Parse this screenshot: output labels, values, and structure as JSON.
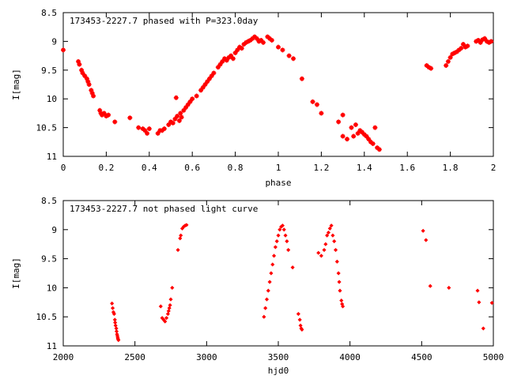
{
  "colors": {
    "marker": "#ff0000",
    "axis": "#000000",
    "background": "#ffffff"
  },
  "chart_data": [
    {
      "type": "scatter",
      "title": "173453-2227.7 phased with P=323.0day",
      "xlabel": "phase",
      "ylabel": "I[mag]",
      "xlim": [
        0,
        2
      ],
      "ylim": [
        8.5,
        11
      ],
      "y_inverted": true,
      "xticks": [
        0,
        0.2,
        0.4,
        0.6,
        0.8,
        1,
        1.2,
        1.4,
        1.6,
        1.8,
        2
      ],
      "xtick_labels": [
        "0",
        "0.2",
        "0.4",
        "0.6",
        "0.8",
        "1",
        "1.2",
        "1.4",
        "1.6",
        "1.8",
        "2"
      ],
      "yticks": [
        8.5,
        9,
        9.5,
        10,
        10.5,
        11
      ],
      "ytick_labels": [
        "8.5",
        "9",
        "9.5",
        "10",
        "10.5",
        "11"
      ],
      "grid": false,
      "marker": "star",
      "points": [
        [
          0.0,
          9.15
        ],
        [
          0.07,
          9.35
        ],
        [
          0.075,
          9.4
        ],
        [
          0.085,
          9.5
        ],
        [
          0.09,
          9.55
        ],
        [
          0.1,
          9.6
        ],
        [
          0.11,
          9.65
        ],
        [
          0.115,
          9.7
        ],
        [
          0.12,
          9.75
        ],
        [
          0.13,
          9.85
        ],
        [
          0.135,
          9.9
        ],
        [
          0.14,
          9.95
        ],
        [
          0.17,
          10.2
        ],
        [
          0.175,
          10.25
        ],
        [
          0.18,
          10.28
        ],
        [
          0.19,
          10.25
        ],
        [
          0.2,
          10.3
        ],
        [
          0.21,
          10.28
        ],
        [
          0.24,
          10.4
        ],
        [
          0.31,
          10.33
        ],
        [
          0.35,
          10.5
        ],
        [
          0.37,
          10.52
        ],
        [
          0.38,
          10.55
        ],
        [
          0.39,
          10.6
        ],
        [
          0.4,
          10.52
        ],
        [
          0.44,
          10.6
        ],
        [
          0.45,
          10.55
        ],
        [
          0.46,
          10.55
        ],
        [
          0.47,
          10.52
        ],
        [
          0.49,
          10.45
        ],
        [
          0.5,
          10.4
        ],
        [
          0.51,
          10.42
        ],
        [
          0.52,
          10.35
        ],
        [
          0.525,
          9.98
        ],
        [
          0.53,
          10.3
        ],
        [
          0.54,
          10.38
        ],
        [
          0.545,
          10.25
        ],
        [
          0.55,
          10.32
        ],
        [
          0.56,
          10.2
        ],
        [
          0.57,
          10.15
        ],
        [
          0.58,
          10.1
        ],
        [
          0.59,
          10.05
        ],
        [
          0.6,
          10.0
        ],
        [
          0.62,
          9.95
        ],
        [
          0.64,
          9.85
        ],
        [
          0.65,
          9.8
        ],
        [
          0.66,
          9.75
        ],
        [
          0.67,
          9.7
        ],
        [
          0.68,
          9.65
        ],
        [
          0.69,
          9.6
        ],
        [
          0.7,
          9.55
        ],
        [
          0.72,
          9.45
        ],
        [
          0.73,
          9.4
        ],
        [
          0.74,
          9.35
        ],
        [
          0.75,
          9.3
        ],
        [
          0.76,
          9.33
        ],
        [
          0.77,
          9.28
        ],
        [
          0.78,
          9.25
        ],
        [
          0.79,
          9.3
        ],
        [
          0.8,
          9.2
        ],
        [
          0.81,
          9.15
        ],
        [
          0.82,
          9.1
        ],
        [
          0.83,
          9.12
        ],
        [
          0.84,
          9.05
        ],
        [
          0.85,
          9.02
        ],
        [
          0.86,
          9.0
        ],
        [
          0.87,
          8.98
        ],
        [
          0.88,
          8.95
        ],
        [
          0.89,
          8.92
        ],
        [
          0.9,
          8.95
        ],
        [
          0.91,
          9.0
        ],
        [
          0.92,
          8.98
        ],
        [
          0.93,
          9.02
        ],
        [
          0.95,
          8.92
        ],
        [
          0.96,
          8.95
        ],
        [
          0.97,
          8.98
        ],
        [
          1.0,
          9.1
        ],
        [
          1.02,
          9.15
        ],
        [
          1.05,
          9.25
        ],
        [
          1.07,
          9.3
        ],
        [
          1.11,
          9.65
        ],
        [
          1.16,
          10.05
        ],
        [
          1.18,
          10.1
        ],
        [
          1.2,
          10.25
        ],
        [
          1.28,
          10.4
        ],
        [
          1.3,
          10.28
        ],
        [
          1.3,
          10.65
        ],
        [
          1.32,
          10.7
        ],
        [
          1.34,
          10.5
        ],
        [
          1.35,
          10.65
        ],
        [
          1.36,
          10.45
        ],
        [
          1.37,
          10.6
        ],
        [
          1.38,
          10.55
        ],
        [
          1.39,
          10.58
        ],
        [
          1.4,
          10.62
        ],
        [
          1.41,
          10.65
        ],
        [
          1.42,
          10.7
        ],
        [
          1.43,
          10.75
        ],
        [
          1.44,
          10.78
        ],
        [
          1.45,
          10.5
        ],
        [
          1.46,
          10.85
        ],
        [
          1.47,
          10.88
        ],
        [
          1.69,
          9.42
        ],
        [
          1.7,
          9.45
        ],
        [
          1.71,
          9.47
        ],
        [
          1.78,
          9.42
        ],
        [
          1.79,
          9.35
        ],
        [
          1.8,
          9.28
        ],
        [
          1.81,
          9.22
        ],
        [
          1.82,
          9.2
        ],
        [
          1.83,
          9.18
        ],
        [
          1.84,
          9.15
        ],
        [
          1.85,
          9.12
        ],
        [
          1.86,
          9.05
        ],
        [
          1.87,
          9.1
        ],
        [
          1.88,
          9.08
        ],
        [
          1.92,
          9.0
        ],
        [
          1.93,
          8.98
        ],
        [
          1.94,
          9.02
        ],
        [
          1.95,
          8.97
        ],
        [
          1.96,
          8.95
        ],
        [
          1.97,
          9.0
        ],
        [
          1.98,
          9.02
        ],
        [
          1.99,
          9.0
        ]
      ]
    },
    {
      "type": "scatter",
      "title": "173453-2227.7 not phased light curve",
      "xlabel": "hjd0",
      "ylabel": "I[mag]",
      "xlim": [
        2000,
        5000
      ],
      "ylim": [
        8.5,
        11
      ],
      "y_inverted": true,
      "xticks": [
        2000,
        2500,
        3000,
        3500,
        4000,
        4500,
        5000
      ],
      "xtick_labels": [
        "2000",
        "2500",
        "3000",
        "3500",
        "4000",
        "4500",
        "5000"
      ],
      "yticks": [
        8.5,
        9,
        9.5,
        10,
        10.5,
        11
      ],
      "ytick_labels": [
        "8.5",
        "9",
        "9.5",
        "10",
        "10.5",
        "11"
      ],
      "grid": false,
      "marker": "diamond",
      "points": [
        [
          2340,
          10.27
        ],
        [
          2345,
          10.35
        ],
        [
          2350,
          10.42
        ],
        [
          2355,
          10.45
        ],
        [
          2360,
          10.55
        ],
        [
          2362,
          10.6
        ],
        [
          2365,
          10.65
        ],
        [
          2370,
          10.7
        ],
        [
          2372,
          10.75
        ],
        [
          2375,
          10.8
        ],
        [
          2378,
          10.83
        ],
        [
          2380,
          10.86
        ],
        [
          2382,
          10.88
        ],
        [
          2385,
          10.9
        ],
        [
          2680,
          10.32
        ],
        [
          2690,
          10.52
        ],
        [
          2700,
          10.55
        ],
        [
          2710,
          10.58
        ],
        [
          2720,
          10.52
        ],
        [
          2730,
          10.45
        ],
        [
          2735,
          10.4
        ],
        [
          2740,
          10.35
        ],
        [
          2745,
          10.3
        ],
        [
          2750,
          10.2
        ],
        [
          2760,
          10.0
        ],
        [
          2800,
          9.35
        ],
        [
          2815,
          9.15
        ],
        [
          2820,
          9.1
        ],
        [
          2830,
          8.98
        ],
        [
          2840,
          8.95
        ],
        [
          2850,
          8.93
        ],
        [
          2860,
          8.92
        ],
        [
          3400,
          10.5
        ],
        [
          3410,
          10.35
        ],
        [
          3420,
          10.2
        ],
        [
          3430,
          10.05
        ],
        [
          3440,
          9.9
        ],
        [
          3450,
          9.75
        ],
        [
          3460,
          9.6
        ],
        [
          3470,
          9.45
        ],
        [
          3480,
          9.3
        ],
        [
          3490,
          9.2
        ],
        [
          3500,
          9.1
        ],
        [
          3510,
          9.0
        ],
        [
          3520,
          8.95
        ],
        [
          3530,
          8.93
        ],
        [
          3540,
          9.0
        ],
        [
          3550,
          9.1
        ],
        [
          3560,
          9.2
        ],
        [
          3570,
          9.35
        ],
        [
          3600,
          9.65
        ],
        [
          3640,
          10.45
        ],
        [
          3650,
          10.55
        ],
        [
          3655,
          10.65
        ],
        [
          3660,
          10.7
        ],
        [
          3665,
          10.72
        ],
        [
          3780,
          9.4
        ],
        [
          3800,
          9.45
        ],
        [
          3820,
          9.35
        ],
        [
          3830,
          9.25
        ],
        [
          3840,
          9.1
        ],
        [
          3850,
          9.05
        ],
        [
          3860,
          8.98
        ],
        [
          3870,
          8.93
        ],
        [
          3880,
          9.1
        ],
        [
          3890,
          9.2
        ],
        [
          3900,
          9.35
        ],
        [
          3910,
          9.55
        ],
        [
          3920,
          9.75
        ],
        [
          3925,
          9.9
        ],
        [
          3930,
          10.05
        ],
        [
          3940,
          10.22
        ],
        [
          3945,
          10.28
        ],
        [
          3950,
          10.32
        ],
        [
          4510,
          9.02
        ],
        [
          4530,
          9.18
        ],
        [
          4560,
          9.97
        ],
        [
          4690,
          10.0
        ],
        [
          4890,
          10.05
        ],
        [
          4900,
          10.25
        ],
        [
          4930,
          10.7
        ],
        [
          4990,
          10.26
        ]
      ]
    }
  ]
}
